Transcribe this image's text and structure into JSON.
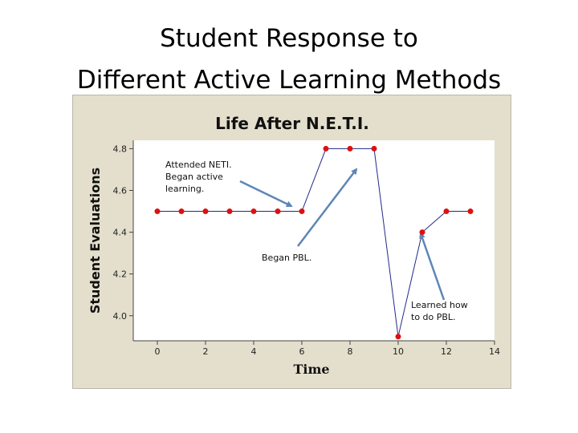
{
  "slide": {
    "title_line1": "Student Response to",
    "title_line2": "Different Active Learning Methods"
  },
  "chart_data": {
    "type": "line",
    "title": "Life After N.E.T.I.",
    "xlabel": "Time",
    "ylabel": "Student Evaluations",
    "x": [
      0,
      1,
      2,
      3,
      4,
      5,
      6,
      7,
      8,
      9,
      10,
      11,
      12,
      13
    ],
    "y": [
      4.5,
      4.5,
      4.5,
      4.5,
      4.5,
      4.5,
      4.5,
      4.8,
      4.8,
      4.8,
      3.9,
      4.4,
      4.5,
      4.5
    ],
    "xlim": [
      -1,
      14
    ],
    "ylim": [
      3.88,
      4.84
    ],
    "xticks": [
      0,
      2,
      4,
      6,
      8,
      10,
      12,
      14
    ],
    "yticks": [
      4.0,
      4.2,
      4.4,
      4.6,
      4.8
    ],
    "xtick_labels": [
      "0",
      "2",
      "4",
      "6",
      "8",
      "10",
      "12",
      "14"
    ],
    "ytick_labels": [
      "4.0",
      "4.2",
      "4.4",
      "4.6",
      "4.8"
    ],
    "line_color": "#1f2a8a",
    "marker_color": "#dd1111",
    "arrow_color": "#5d86b5",
    "annotations": [
      {
        "lines": [
          "Attended NETI.",
          "Began active",
          "learning."
        ],
        "target_x": 6
      },
      {
        "lines": [
          "Began PBL."
        ],
        "target_x": 9
      },
      {
        "lines": [
          "Learned how",
          "to do PBL."
        ],
        "target_x": 11
      }
    ]
  }
}
